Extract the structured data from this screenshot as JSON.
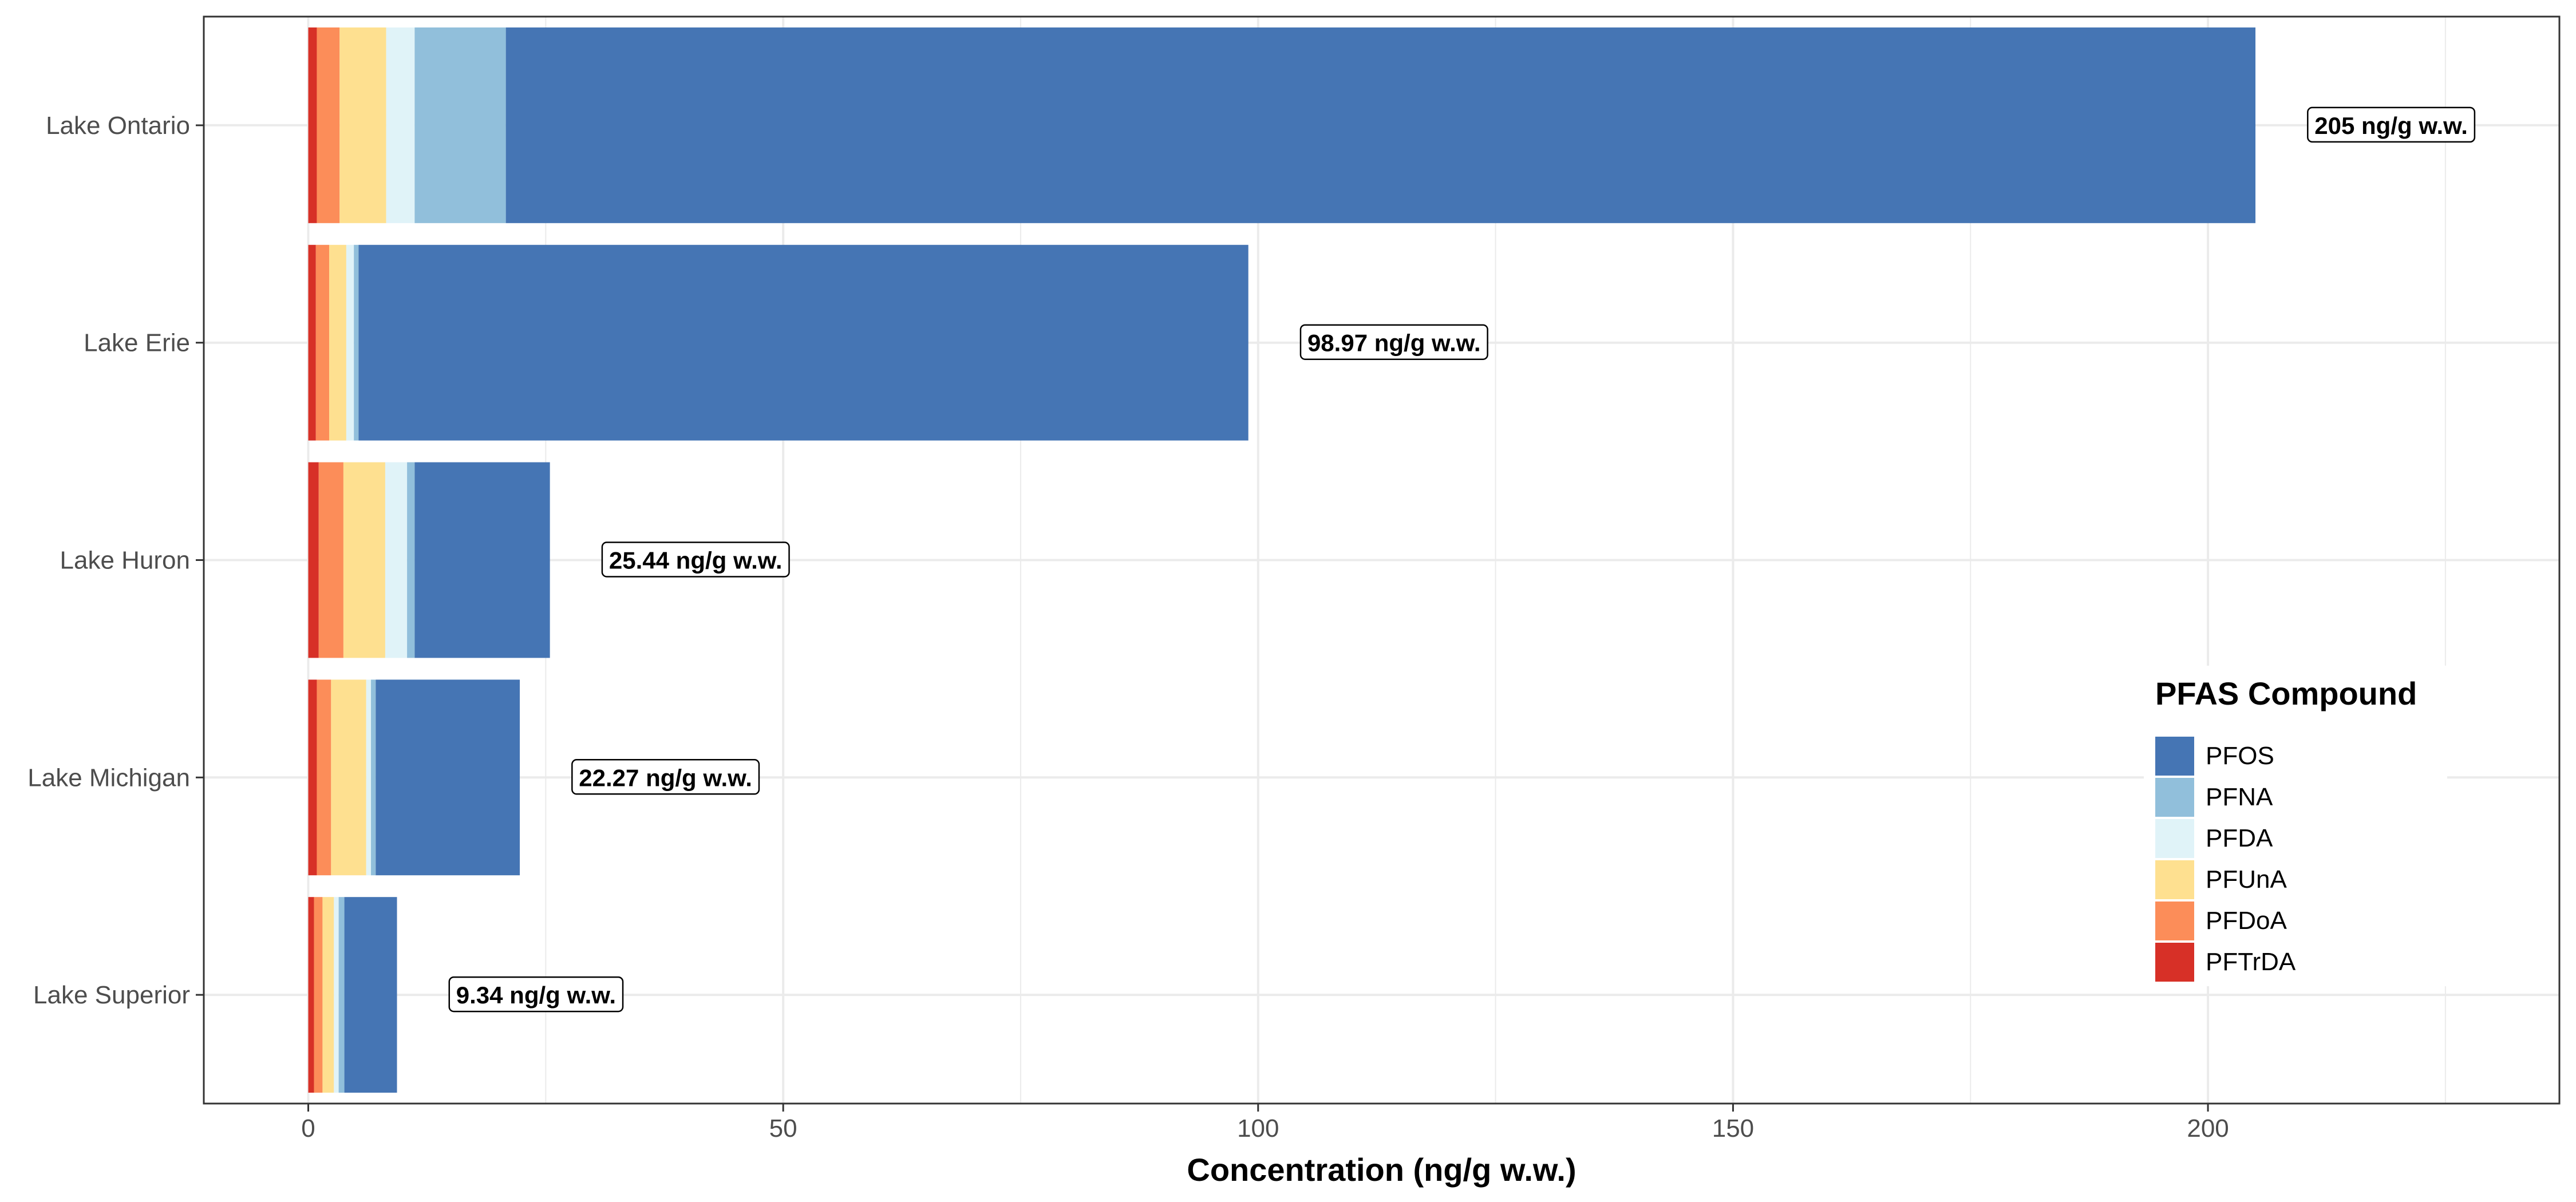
{
  "chart_data": {
    "type": "bar",
    "orientation": "horizontal",
    "stacked": true,
    "categories": [
      "Lake Ontario",
      "Lake Erie",
      "Lake Huron",
      "Lake Michigan",
      "Lake Superior"
    ],
    "series": [
      {
        "name": "PFTrDA",
        "color": "#d73027",
        "values": [
          0.9,
          0.8,
          1.1,
          0.9,
          0.6
        ]
      },
      {
        "name": "PFDoA",
        "color": "#fc8d59",
        "values": [
          2.4,
          1.4,
          2.6,
          1.5,
          0.9
        ]
      },
      {
        "name": "PFUnA",
        "color": "#fee090",
        "values": [
          4.9,
          1.8,
          4.4,
          3.7,
          1.2
        ]
      },
      {
        "name": "PFDA",
        "color": "#e0f3f8",
        "values": [
          3.0,
          0.8,
          2.3,
          0.5,
          0.5
        ]
      },
      {
        "name": "PFNA",
        "color": "#91bfdb",
        "values": [
          9.6,
          0.5,
          0.8,
          0.5,
          0.6
        ]
      },
      {
        "name": "PFOS",
        "color": "#4575b4",
        "values": [
          184.2,
          93.67,
          14.24,
          15.17,
          5.54
        ]
      }
    ],
    "totals": [
      205,
      98.97,
      25.44,
      22.27,
      9.34
    ],
    "total_labels": [
      "205 ng/g w.w.",
      "98.97 ng/g w.w.",
      "25.44 ng/g w.w.",
      "22.27 ng/g w.w.",
      "9.34 ng/g w.w."
    ],
    "xlabel": "Concentration (ng/g w.w.)",
    "ylabel": "",
    "xlim": [
      -11,
      237
    ],
    "xticks": [
      0,
      50,
      100,
      150,
      200
    ],
    "grid": true,
    "legend": {
      "title": "PFAS Compound",
      "position": "right-bottom inside",
      "order": [
        "PFOS",
        "PFNA",
        "PFDA",
        "PFUnA",
        "PFDoA",
        "PFTrDA"
      ]
    }
  }
}
